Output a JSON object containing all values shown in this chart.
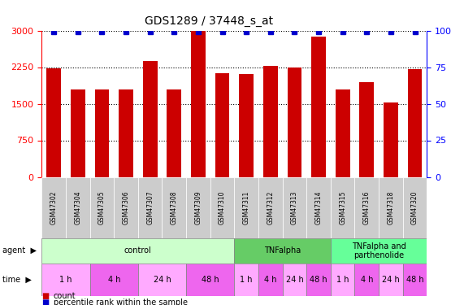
{
  "title": "GDS1289 / 37448_s_at",
  "samples": [
    "GSM47302",
    "GSM47304",
    "GSM47305",
    "GSM47306",
    "GSM47307",
    "GSM47308",
    "GSM47309",
    "GSM47310",
    "GSM47311",
    "GSM47312",
    "GSM47313",
    "GSM47314",
    "GSM47315",
    "GSM47316",
    "GSM47318",
    "GSM47320"
  ],
  "counts": [
    2230,
    1800,
    1790,
    1800,
    2380,
    1790,
    2990,
    2130,
    2110,
    2270,
    2250,
    2880,
    1800,
    1940,
    1530,
    2210
  ],
  "percentiles": [
    99,
    99,
    99,
    99,
    99,
    99,
    99,
    99,
    99,
    99,
    99,
    99,
    99,
    99,
    99,
    99
  ],
  "bar_color": "#cc0000",
  "dot_color": "#0000cc",
  "ylim_left": [
    0,
    3000
  ],
  "ylim_right": [
    0,
    100
  ],
  "yticks_left": [
    0,
    750,
    1500,
    2250,
    3000
  ],
  "yticks_right": [
    0,
    25,
    50,
    75,
    100
  ],
  "agent_groups": [
    {
      "label": "control",
      "start": 0,
      "end": 8,
      "color": "#ccffcc"
    },
    {
      "label": "TNFalpha",
      "start": 8,
      "end": 12,
      "color": "#66cc66"
    },
    {
      "label": "TNFalpha and\nparthenolide",
      "start": 12,
      "end": 16,
      "color": "#66ff99"
    }
  ],
  "time_groups": [
    {
      "label": "1 h",
      "start": 0,
      "end": 2,
      "color": "#ffaaff"
    },
    {
      "label": "4 h",
      "start": 2,
      "end": 4,
      "color": "#ee66ee"
    },
    {
      "label": "24 h",
      "start": 4,
      "end": 6,
      "color": "#ffaaff"
    },
    {
      "label": "48 h",
      "start": 6,
      "end": 8,
      "color": "#ee66ee"
    },
    {
      "label": "1 h",
      "start": 8,
      "end": 9,
      "color": "#ffaaff"
    },
    {
      "label": "4 h",
      "start": 9,
      "end": 10,
      "color": "#ee66ee"
    },
    {
      "label": "24 h",
      "start": 10,
      "end": 11,
      "color": "#ffaaff"
    },
    {
      "label": "48 h",
      "start": 11,
      "end": 12,
      "color": "#ee66ee"
    },
    {
      "label": "1 h",
      "start": 12,
      "end": 13,
      "color": "#ffaaff"
    },
    {
      "label": "4 h",
      "start": 13,
      "end": 14,
      "color": "#ee66ee"
    },
    {
      "label": "24 h",
      "start": 14,
      "end": 15,
      "color": "#ffaaff"
    },
    {
      "label": "48 h",
      "start": 15,
      "end": 16,
      "color": "#ee66ee"
    }
  ],
  "legend_count_color": "#cc0000",
  "legend_dot_color": "#0000cc",
  "legend_count_label": "count",
  "legend_dot_label": "percentile rank within the sample",
  "background_color": "#ffffff",
  "plot_bg_color": "#ffffff"
}
